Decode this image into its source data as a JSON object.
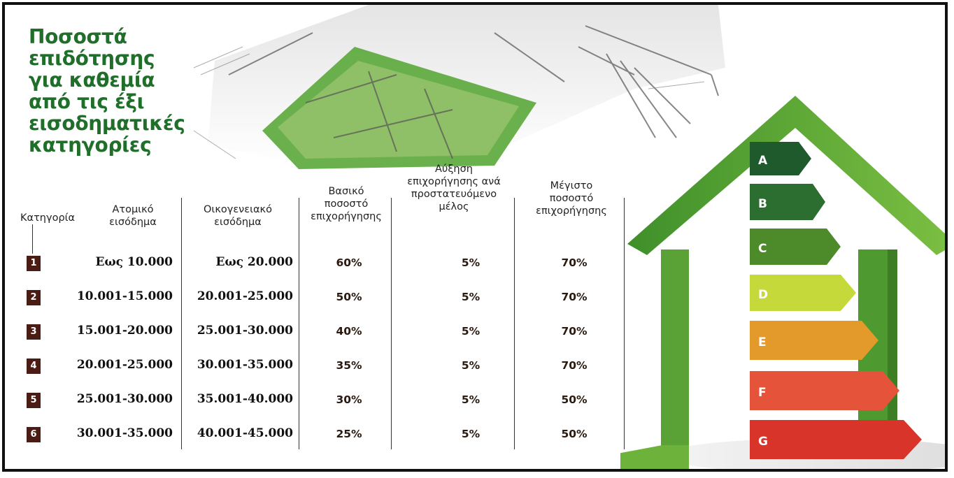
{
  "title": {
    "lines": [
      "Ποσοστά",
      "επιδότησης",
      "για καθεμία",
      "από τις έξι",
      "εισοδηματικές",
      "κατηγορίες"
    ]
  },
  "table": {
    "headers": {
      "category": "Κατηγορία",
      "individual": [
        "Ατομικό",
        "εισόδημα"
      ],
      "family": [
        "Οικογενειακό",
        "εισόδημα"
      ],
      "basic": [
        "Βασικό",
        "ποσοστό",
        "επιχορήγησης"
      ],
      "increase": [
        "Αύξηση",
        "επιχορήγησης ανά",
        "προστατευόμενο",
        "μέλος"
      ],
      "max": [
        "Μέγιστο",
        "ποσοστό",
        "επιχορήγησης"
      ]
    },
    "rows": [
      {
        "cat": "1",
        "individual": "Εως 10.000",
        "family": "Εως 20.000",
        "basic": "60%",
        "increase": "5%",
        "max": "70%"
      },
      {
        "cat": "2",
        "individual": "10.001-15.000",
        "family": "20.001-25.000",
        "basic": "50%",
        "increase": "5%",
        "max": "70%"
      },
      {
        "cat": "3",
        "individual": "15.001-20.000",
        "family": "25.001-30.000",
        "basic": "40%",
        "increase": "5%",
        "max": "70%"
      },
      {
        "cat": "4",
        "individual": "20.001-25.000",
        "family": "30.001-35.000",
        "basic": "35%",
        "increase": "5%",
        "max": "70%"
      },
      {
        "cat": "5",
        "individual": "25.001-30.000",
        "family": "35.001-40.000",
        "basic": "30%",
        "increase": "5%",
        "max": "50%"
      },
      {
        "cat": "6",
        "individual": "30.001-35.000",
        "family": "40.001-45.000",
        "basic": "25%",
        "increase": "5%",
        "max": "50%"
      }
    ]
  },
  "energy_classes": {
    "labels": [
      "A",
      "B",
      "C",
      "D",
      "E",
      "F",
      "G"
    ],
    "colors": [
      "#1f5a2c",
      "#2c6e30",
      "#4c8a2a",
      "#c6d93a",
      "#e39a2a",
      "#e4533a",
      "#d8342a"
    ]
  }
}
